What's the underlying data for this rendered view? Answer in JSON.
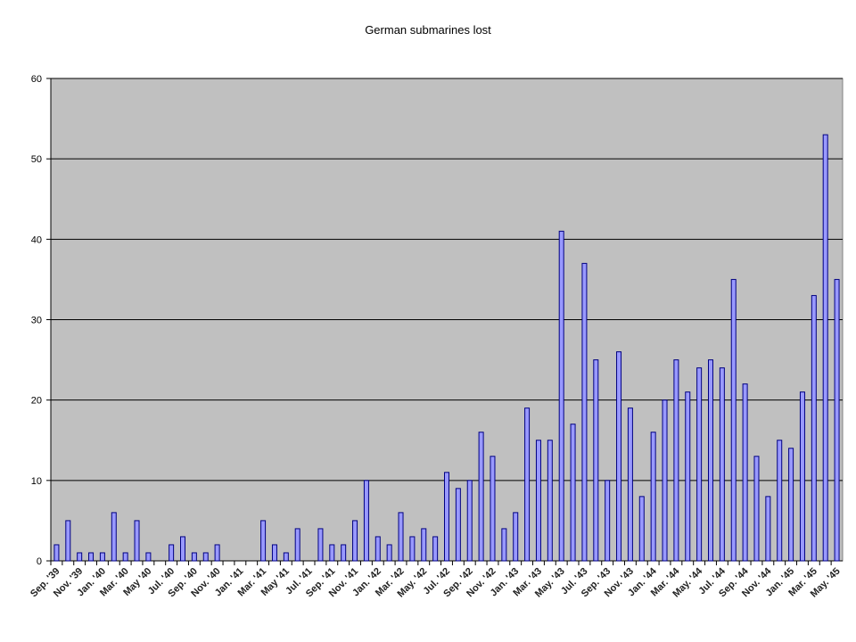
{
  "chart_data": {
    "type": "bar",
    "title": "German submarines lost",
    "categories": [
      "Sep. '39",
      null,
      "Nov. '39",
      null,
      "Jan. '40",
      null,
      "Mar. '40",
      null,
      "May '40",
      null,
      "Jul. '40",
      null,
      "Sep. '40",
      null,
      "Nov. '40",
      null,
      "Jan. '41",
      null,
      "Mar. '41",
      null,
      "May '41",
      null,
      "Jul. '41",
      null,
      "Sep. '41",
      null,
      "Nov. '41",
      null,
      "Jan. '42",
      null,
      "Mar. '42",
      null,
      "May. '42",
      null,
      "Jul. '42",
      null,
      "Sep. '42",
      null,
      "Nov. '42",
      null,
      "Jan. '43",
      null,
      "Mar. '43",
      null,
      "May. '43",
      null,
      "Jul. '43",
      null,
      "Sep. '43",
      null,
      "Nov. '43",
      null,
      "Jan. '44",
      null,
      "Mar. '44",
      null,
      "May. '44",
      null,
      "Jul. '44",
      null,
      "Sep. '44",
      null,
      "Nov. '44",
      null,
      "Jan. '45",
      null,
      "Mar. '45",
      null,
      "May. '45"
    ],
    "values": [
      2,
      5,
      1,
      1,
      1,
      6,
      1,
      5,
      1,
      0,
      2,
      3,
      1,
      1,
      2,
      0,
      0,
      0,
      5,
      2,
      1,
      4,
      0,
      4,
      2,
      2,
      5,
      10,
      3,
      2,
      6,
      3,
      4,
      3,
      11,
      9,
      10,
      16,
      13,
      4,
      6,
      19,
      15,
      15,
      41,
      17,
      37,
      25,
      10,
      26,
      19,
      8,
      16,
      20,
      25,
      21,
      24,
      25,
      24,
      35,
      22,
      13,
      8,
      15,
      14,
      21,
      33,
      53,
      35
    ],
    "color": "#9999ff",
    "plot_background": "#c0c0c0",
    "ylim": [
      0,
      60
    ],
    "yticks": [
      0,
      10,
      20,
      30,
      40,
      50,
      60
    ],
    "grid": true
  }
}
